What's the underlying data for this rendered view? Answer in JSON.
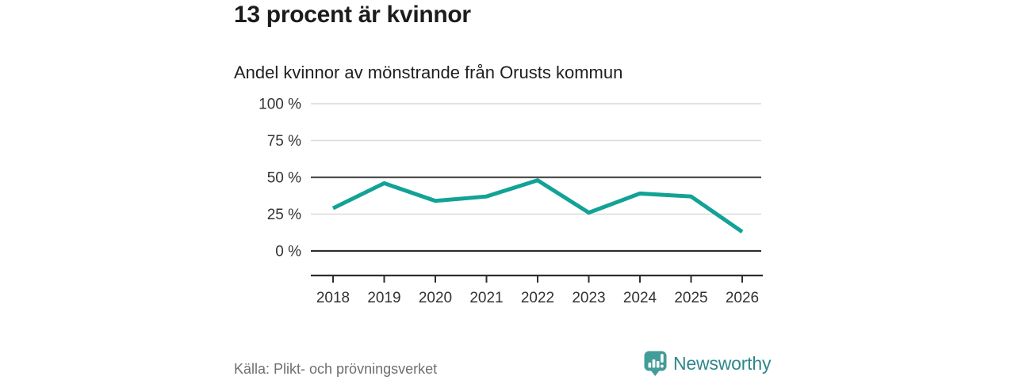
{
  "header": {
    "title": "13 procent är kvinnor",
    "subtitle": "Andel kvinnor av mönstrande från Orusts kommun"
  },
  "chart_data": {
    "type": "line",
    "categories": [
      "2018",
      "2019",
      "2020",
      "2021",
      "2022",
      "2023",
      "2024",
      "2025",
      "2026"
    ],
    "series": [
      {
        "name": "Andel kvinnor av mönstrande",
        "values": [
          29,
          46,
          34,
          37,
          48,
          26,
          39,
          37,
          13
        ]
      }
    ],
    "title": "13 procent är kvinnor",
    "subtitle": "Andel kvinnor av mönstrande från Orusts kommun",
    "xlabel": "",
    "ylabel": "",
    "ylim": [
      0,
      100
    ],
    "yticks": [
      0,
      25,
      50,
      75,
      100
    ],
    "ytick_format": "{v} %",
    "grid": "horizontal",
    "benchmark_line": 50,
    "legend": "none",
    "line_color": "#12a296",
    "grid_color": "#dadada",
    "benchmark_grid_color": "#4f4f4f",
    "axis_color": "#2e2e2e",
    "tick_label_color": "#333333"
  },
  "footer": {
    "source": "Källa: Plikt- och prövningsverket",
    "brand": "Newsworthy",
    "logo_icon": "bar-chart-speech-bubble-icon",
    "brand_icon_color": "#429c98",
    "brand_text_color": "#2e868c"
  }
}
